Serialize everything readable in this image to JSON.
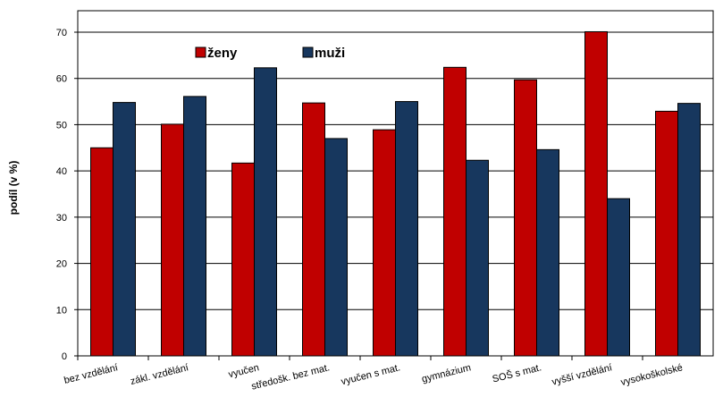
{
  "chart_data": {
    "type": "bar",
    "title": "",
    "xlabel": "",
    "ylabel": "podíl (v %)",
    "ylim": [
      0,
      70
    ],
    "yticks": [
      0,
      10,
      20,
      30,
      40,
      50,
      60,
      70
    ],
    "grid": "horizontal",
    "legend_position": "top-center",
    "categories": [
      "bez vzdělání",
      "zákl. vzdělání",
      "vyučen",
      "středošk. bez mat.",
      "vyučen s mat.",
      "gymnázium",
      "SOŠ s mat.",
      "vyšší vzdělání",
      "vysokoškolské"
    ],
    "series": [
      {
        "name": "ženy",
        "color": "#c00000",
        "values": [
          45.0,
          50.1,
          41.7,
          54.7,
          48.9,
          62.4,
          59.7,
          70.1,
          52.9
        ]
      },
      {
        "name": "muži",
        "color": "#17375e",
        "values": [
          54.8,
          56.1,
          62.3,
          47.0,
          55.0,
          42.3,
          44.6,
          34.0,
          54.6
        ]
      }
    ]
  }
}
